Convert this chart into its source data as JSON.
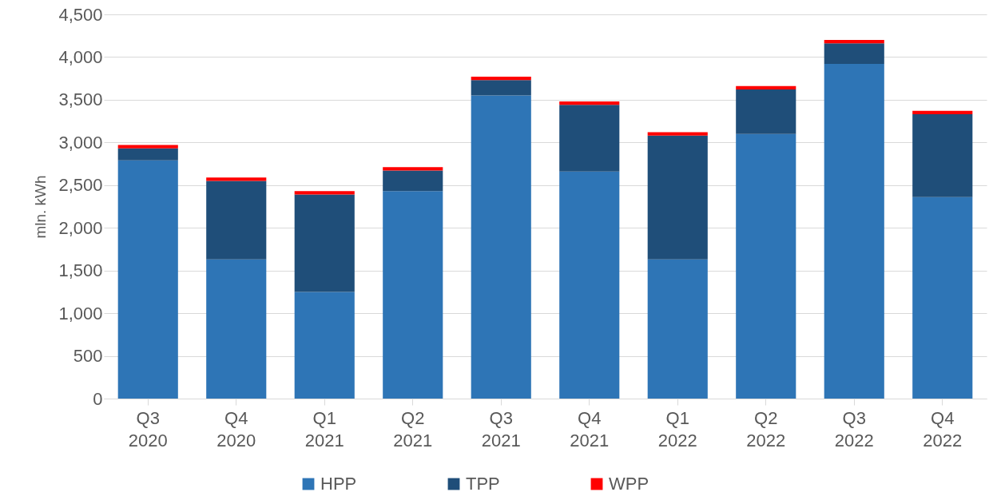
{
  "chart_data": {
    "type": "bar",
    "stacked": true,
    "ylabel": "mln. kWh",
    "categories": [
      "Q3 2020",
      "Q4 2020",
      "Q1 2021",
      "Q2 2021",
      "Q3 2021",
      "Q4 2021",
      "Q1 2022",
      "Q2 2022",
      "Q3 2022",
      "Q4 2022"
    ],
    "series": [
      {
        "name": "HPP",
        "color": "#2e75b6",
        "values": [
          2790,
          1630,
          1250,
          2430,
          3550,
          2660,
          1630,
          3100,
          3920,
          2360
        ]
      },
      {
        "name": "TPP",
        "color": "#1f4e79",
        "values": [
          140,
          920,
          1140,
          240,
          180,
          780,
          1450,
          520,
          240,
          970
        ]
      },
      {
        "name": "WPP",
        "color": "#ff0000",
        "values": [
          40,
          40,
          40,
          40,
          40,
          40,
          40,
          40,
          40,
          40
        ]
      }
    ],
    "ylim": [
      0,
      4500
    ],
    "yticks": [
      0,
      500,
      {
        "value": 1000,
        "label": "1,000"
      },
      {
        "value": 1500,
        "label": "1,500"
      },
      {
        "value": 2000,
        "label": "2,000"
      },
      {
        "value": 2500,
        "label": "2,500"
      },
      {
        "value": 3000,
        "label": "3,000"
      },
      {
        "value": 3500,
        "label": "3,500"
      },
      {
        "value": 4000,
        "label": "4,000"
      },
      {
        "value": 4500,
        "label": "4,500"
      }
    ],
    "grid": "y",
    "legend": "bottom"
  }
}
